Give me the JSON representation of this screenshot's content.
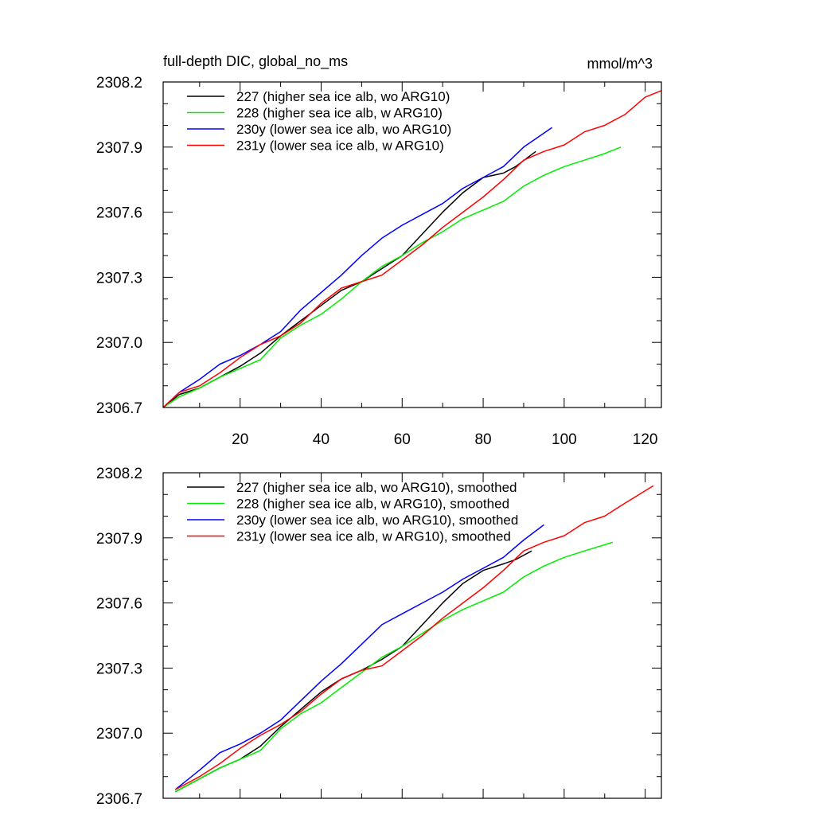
{
  "chart_data": [
    {
      "type": "line",
      "title": "full-depth DIC, global_no_ms",
      "units": "mmol/m^3",
      "xlim": [
        1,
        124
      ],
      "ylim": [
        2306.7,
        2308.2
      ],
      "xticks": [
        20,
        40,
        60,
        80,
        100,
        120
      ],
      "xtick_labels": [
        "20",
        "40",
        "60",
        "80",
        "100",
        "120"
      ],
      "yticks": [
        2306.7,
        2307.0,
        2307.3,
        2307.6,
        2307.9,
        2308.2
      ],
      "ytick_labels": [
        "2306.7",
        "2307.0",
        "2307.3",
        "2307.6",
        "2307.9",
        "2308.2"
      ],
      "legend": "top-left",
      "series": [
        {
          "name": "227 (higher sea ice alb, wo ARG10)",
          "color": "#000000",
          "x": [
            1,
            5,
            10,
            15,
            20,
            25,
            30,
            35,
            40,
            45,
            50,
            55,
            60,
            65,
            70,
            75,
            80,
            85,
            88,
            93
          ],
          "y": [
            2306.7,
            2306.76,
            2306.79,
            2306.84,
            2306.89,
            2306.95,
            2307.03,
            2307.1,
            2307.17,
            2307.24,
            2307.28,
            2307.34,
            2307.4,
            2307.5,
            2307.6,
            2307.69,
            2307.76,
            2307.78,
            2307.81,
            2307.88
          ]
        },
        {
          "name": "228 (higher sea ice alb, w ARG10)",
          "color": "#00ee00",
          "x": [
            1,
            5,
            10,
            15,
            20,
            25,
            30,
            35,
            40,
            45,
            50,
            55,
            60,
            65,
            70,
            75,
            80,
            85,
            90,
            95,
            100,
            105,
            110,
            114
          ],
          "y": [
            2306.7,
            2306.75,
            2306.79,
            2306.84,
            2306.88,
            2306.92,
            2307.02,
            2307.08,
            2307.13,
            2307.2,
            2307.28,
            2307.35,
            2307.4,
            2307.46,
            2307.51,
            2307.57,
            2307.61,
            2307.65,
            2307.72,
            2307.77,
            2307.81,
            2307.84,
            2307.87,
            2307.9
          ]
        },
        {
          "name": "230y (lower sea ice alb, wo ARG10)",
          "color": "#0000ff",
          "x": [
            1,
            5,
            10,
            15,
            20,
            25,
            30,
            35,
            40,
            45,
            50,
            55,
            60,
            65,
            70,
            75,
            80,
            85,
            90,
            97
          ],
          "y": [
            2306.7,
            2306.77,
            2306.83,
            2306.9,
            2306.94,
            2306.99,
            2307.05,
            2307.15,
            2307.23,
            2307.31,
            2307.4,
            2307.48,
            2307.54,
            2307.59,
            2307.64,
            2307.71,
            2307.76,
            2307.81,
            2307.9,
            2307.99
          ]
        },
        {
          "name": "231y (lower sea ice alb, w ARG10)",
          "color": "#ff0000",
          "x": [
            1,
            5,
            10,
            15,
            20,
            25,
            30,
            35,
            40,
            45,
            50,
            55,
            60,
            65,
            70,
            75,
            80,
            85,
            90,
            95,
            100,
            105,
            110,
            115,
            120,
            124
          ],
          "y": [
            2306.7,
            2306.77,
            2306.8,
            2306.86,
            2306.93,
            2306.99,
            2307.03,
            2307.09,
            2307.18,
            2307.25,
            2307.28,
            2307.31,
            2307.38,
            2307.45,
            2307.53,
            2307.6,
            2307.67,
            2307.75,
            2307.84,
            2307.88,
            2307.91,
            2307.97,
            2308.0,
            2308.05,
            2308.13,
            2308.16
          ]
        }
      ]
    },
    {
      "type": "line",
      "title": "",
      "units": "",
      "xlim": [
        1,
        124
      ],
      "ylim": [
        2306.7,
        2308.2
      ],
      "xticks": [],
      "xtick_labels": [],
      "yticks": [
        2306.7,
        2307.0,
        2307.3,
        2307.6,
        2307.9,
        2308.2
      ],
      "ytick_labels": [
        "2306.7",
        "2307.0",
        "2307.3",
        "2307.6",
        "2307.9",
        "2308.2"
      ],
      "legend": "top-left",
      "series": [
        {
          "name": "227 (higher sea ice alb, wo ARG10), smoothed",
          "color": "#000000",
          "x": [
            4,
            10,
            15,
            20,
            25,
            30,
            35,
            40,
            45,
            50,
            55,
            60,
            65,
            70,
            75,
            80,
            85,
            88,
            92
          ],
          "y": [
            2306.73,
            2306.79,
            2306.84,
            2306.88,
            2306.94,
            2307.03,
            2307.11,
            2307.19,
            2307.25,
            2307.29,
            2307.34,
            2307.4,
            2307.5,
            2307.6,
            2307.69,
            2307.75,
            2307.78,
            2307.8,
            2307.84
          ]
        },
        {
          "name": "228 (higher sea ice alb, w ARG10), smoothed",
          "color": "#00ee00",
          "x": [
            4,
            10,
            15,
            20,
            25,
            30,
            35,
            40,
            45,
            50,
            55,
            60,
            65,
            70,
            75,
            80,
            85,
            90,
            95,
            100,
            105,
            112
          ],
          "y": [
            2306.73,
            2306.79,
            2306.84,
            2306.88,
            2306.92,
            2307.02,
            2307.09,
            2307.14,
            2307.21,
            2307.28,
            2307.35,
            2307.4,
            2307.46,
            2307.52,
            2307.57,
            2307.61,
            2307.65,
            2307.72,
            2307.77,
            2307.81,
            2307.84,
            2307.88
          ]
        },
        {
          "name": "230y (lower sea ice alb, wo ARG10), smoothed",
          "color": "#0000ff",
          "x": [
            4,
            10,
            15,
            20,
            25,
            30,
            35,
            40,
            45,
            50,
            55,
            60,
            65,
            70,
            75,
            80,
            85,
            90,
            95
          ],
          "y": [
            2306.74,
            2306.83,
            2306.91,
            2306.95,
            2307.0,
            2307.06,
            2307.15,
            2307.24,
            2307.32,
            2307.41,
            2307.5,
            2307.55,
            2307.6,
            2307.65,
            2307.71,
            2307.76,
            2307.81,
            2307.89,
            2307.96
          ]
        },
        {
          "name": "231y (lower sea ice alb, w ARG10), smoothed",
          "color": "#ff0000",
          "x": [
            4,
            10,
            15,
            20,
            25,
            30,
            35,
            40,
            45,
            50,
            55,
            60,
            65,
            70,
            75,
            80,
            85,
            90,
            95,
            100,
            105,
            110,
            115,
            122
          ],
          "y": [
            2306.74,
            2306.8,
            2306.86,
            2306.93,
            2306.99,
            2307.04,
            2307.1,
            2307.18,
            2307.25,
            2307.29,
            2307.31,
            2307.38,
            2307.45,
            2307.53,
            2307.6,
            2307.67,
            2307.75,
            2307.84,
            2307.88,
            2307.91,
            2307.97,
            2308.0,
            2308.06,
            2308.14
          ]
        }
      ]
    }
  ]
}
